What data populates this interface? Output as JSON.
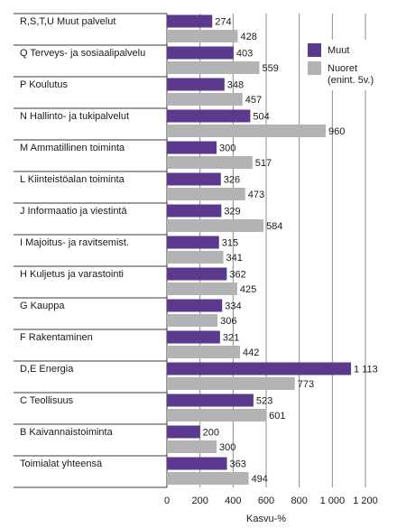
{
  "chart_data": {
    "type": "bar",
    "orientation": "horizontal",
    "categories": [
      "R,S,T,U Muut palvelut",
      "Q Terveys- ja sosiaalipalvelu",
      "P Koulutus",
      "N Hallinto- ja tukipalvelut",
      "M Ammatillinen toiminta",
      "L Kiinteistöalan toiminta",
      "J Informaatio ja viestintä",
      "I Majoitus- ja ravitsemist.",
      "H Kuljetus ja varastointi",
      "G Kauppa",
      "F Rakentaminen",
      "D,E Energia",
      "C Teollisuus",
      "B Kaivannaistoiminta",
      "Toimialat yhteensä"
    ],
    "series": [
      {
        "name": "Muut",
        "color": "#5b3a8e",
        "values": [
          274,
          403,
          348,
          504,
          300,
          326,
          329,
          315,
          362,
          334,
          321,
          1113,
          523,
          200,
          363
        ],
        "value_labels": [
          "274",
          "403",
          "348",
          "504",
          "300",
          "326",
          "329",
          "315",
          "362",
          "334",
          "321",
          "1 113",
          "523",
          "200",
          "363"
        ]
      },
      {
        "name": "Nuoret\n(enint. 5v.)",
        "color": "#b3b3b3",
        "values": [
          428,
          559,
          457,
          960,
          517,
          473,
          584,
          341,
          425,
          306,
          442,
          773,
          601,
          300,
          494
        ],
        "value_labels": [
          "428",
          "559",
          "457",
          "960",
          "517",
          "473",
          "584",
          "341",
          "425",
          "306",
          "442",
          "773",
          "601",
          "300",
          "494"
        ]
      }
    ],
    "xlim": [
      0,
      1200
    ],
    "xticks": [
      0,
      200,
      400,
      600,
      800,
      1000,
      1200
    ],
    "xtick_labels": [
      "0",
      "200",
      "400",
      "600",
      "800",
      "1 000",
      "1 200"
    ],
    "xlabel": "Kasvu-%",
    "ylabel": "",
    "title": "",
    "grid": true,
    "legend_position": "top-right"
  }
}
